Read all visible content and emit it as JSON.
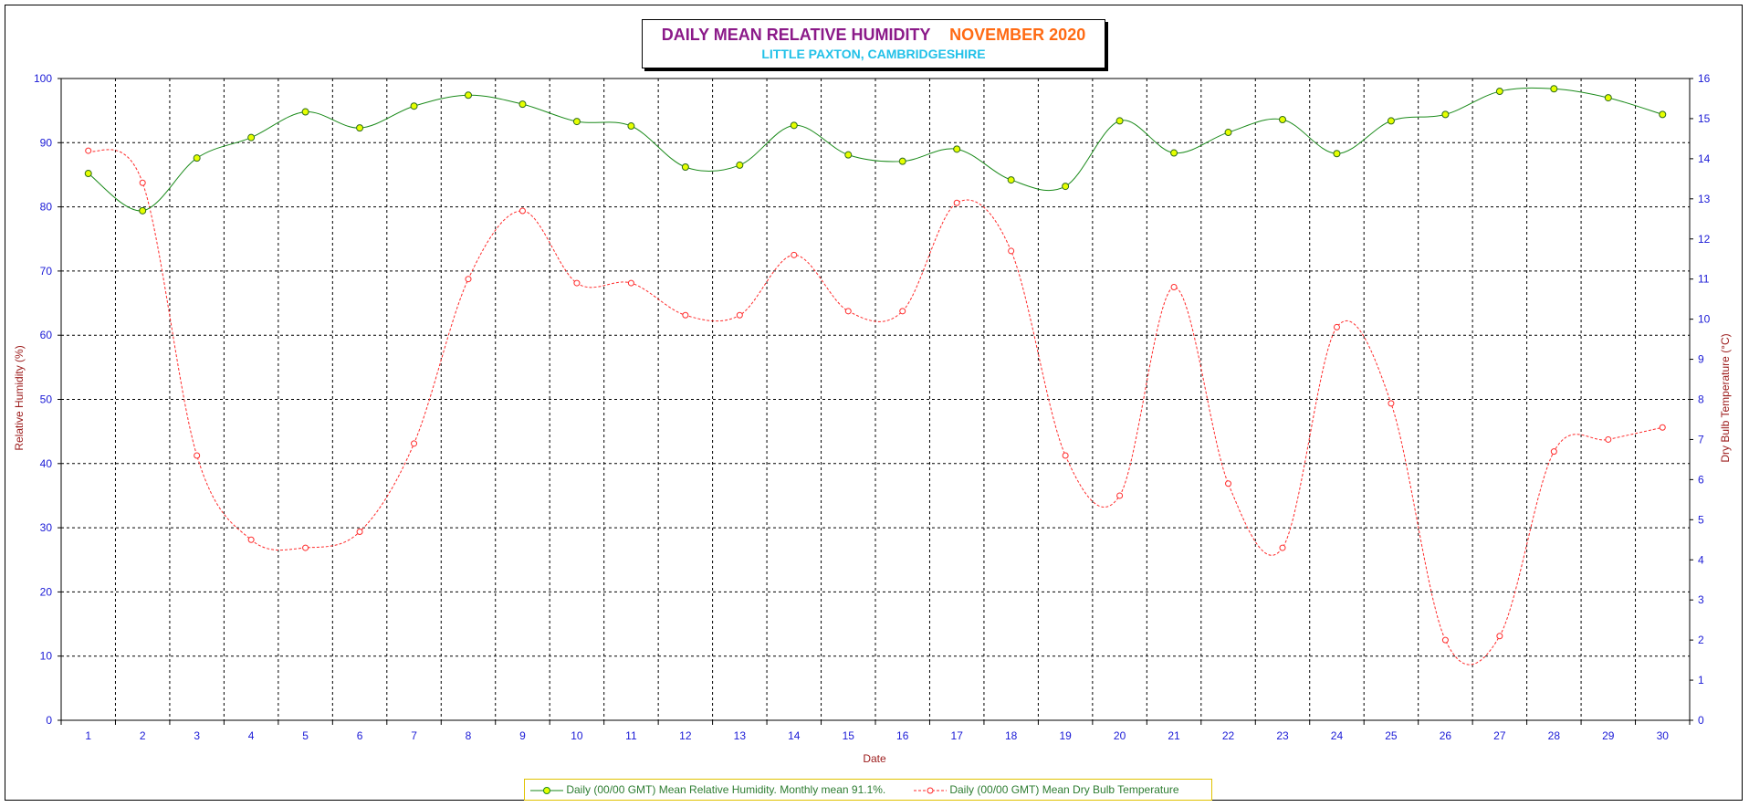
{
  "title": {
    "main": "DAILY MEAN RELATIVE HUMIDITY",
    "month": "NOVEMBER 2020",
    "subtitle": "LITTLE PAXTON, CAMBRIDGESHIRE"
  },
  "chart_data": {
    "type": "line",
    "xlabel": "Date",
    "ylabel_left": "Relative Humidity (%)",
    "ylabel_right": "Dry Bulb Temperature (°C)",
    "x": [
      1,
      2,
      3,
      4,
      5,
      6,
      7,
      8,
      9,
      10,
      11,
      12,
      13,
      14,
      15,
      16,
      17,
      18,
      19,
      20,
      21,
      22,
      23,
      24,
      25,
      26,
      27,
      28,
      29,
      30
    ],
    "ylim_left": [
      0,
      100
    ],
    "ylim_right": [
      0,
      16
    ],
    "yticks_left": [
      0,
      10,
      20,
      30,
      40,
      50,
      60,
      70,
      80,
      90,
      100
    ],
    "yticks_right": [
      0,
      1,
      2,
      3,
      4,
      5,
      6,
      7,
      8,
      9,
      10,
      11,
      12,
      13,
      14,
      15,
      16
    ],
    "grid": true,
    "legend_position": "bottom",
    "series": [
      {
        "name": "Daily (00/00 GMT) Mean Relative Humidity. Monthly mean 91.1%.",
        "axis": "left",
        "color": "#1a8a1a",
        "marker_color": "#e6ff00",
        "values": [
          85.2,
          79.4,
          87.6,
          90.8,
          94.8,
          92.3,
          95.7,
          97.4,
          96.0,
          93.3,
          92.6,
          86.2,
          86.5,
          92.7,
          88.1,
          87.1,
          89.0,
          84.2,
          83.2,
          93.4,
          88.4,
          91.6,
          93.6,
          88.3,
          93.4,
          94.4,
          98.0,
          98.4,
          97.0,
          94.4
        ]
      },
      {
        "name": "Daily (00/00 GMT) Mean Dry Bulb Temperature",
        "axis": "right",
        "color": "#ff2a2a",
        "values": [
          14.2,
          13.4,
          6.6,
          4.5,
          4.3,
          4.7,
          6.9,
          11.0,
          12.7,
          10.9,
          10.9,
          10.1,
          10.1,
          11.6,
          10.2,
          10.2,
          12.9,
          11.7,
          6.6,
          5.6,
          10.8,
          5.9,
          4.3,
          9.8,
          7.9,
          2.0,
          2.1,
          6.7,
          7.0,
          7.3
        ]
      }
    ]
  },
  "colors": {
    "tick_text": "#1a1ad6",
    "axis_label": "#9b1a1a",
    "grid": "#000000"
  }
}
